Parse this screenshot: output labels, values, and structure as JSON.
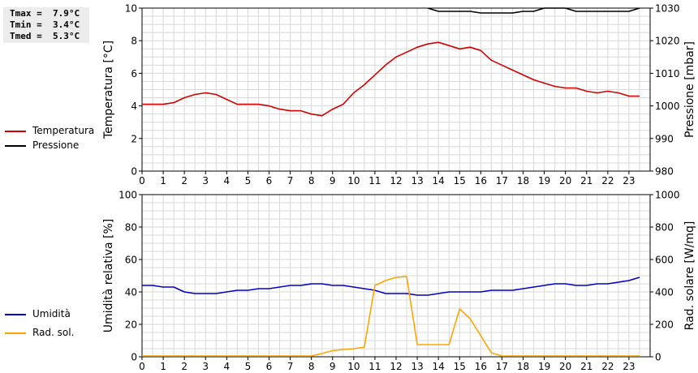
{
  "stats": {
    "tmax": "Tmax =  7.9°C",
    "tmin": "Tmin =  3.4°C",
    "tmed": "Tmed =  5.3°C"
  },
  "colors": {
    "temperatura": "#d40000",
    "pressione": "#000000",
    "umidita": "#0000cc",
    "radsol": "#ffa500",
    "grid": "#d8d8d8"
  },
  "legend_top": [
    {
      "label": "Temperatura",
      "color_key": "temperatura"
    },
    {
      "label": "Pressione",
      "color_key": "pressione"
    }
  ],
  "legend_bottom": [
    {
      "label": "Umidità",
      "color_key": "umidita"
    },
    {
      "label": "Rad. sol.",
      "color_key": "radsol"
    }
  ],
  "chart_data": [
    {
      "type": "line",
      "ylabel": "Temperatura [°C]",
      "y2label": "Pressione [mbar]",
      "xlim": [
        0,
        24
      ],
      "ylim": [
        0,
        10
      ],
      "y2lim": [
        980,
        1030
      ],
      "xticks": [
        "0",
        "1",
        "2",
        "3",
        "4",
        "5",
        "6",
        "7",
        "8",
        "9",
        "10",
        "11",
        "12",
        "13",
        "14",
        "15",
        "16",
        "17",
        "18",
        "19",
        "20",
        "21",
        "22",
        "23"
      ],
      "yticks": [
        "0",
        "2",
        "4",
        "6",
        "8",
        "10"
      ],
      "y2ticks": [
        "980",
        "990",
        "1000",
        "1010",
        "1020",
        "1030"
      ],
      "grid": true,
      "series": [
        {
          "name": "Temperatura",
          "axis": "left",
          "color_key": "temperatura",
          "x": [
            0,
            0.5,
            1,
            1.5,
            2,
            2.5,
            3,
            3.5,
            4,
            4.5,
            5,
            5.5,
            6,
            6.5,
            7,
            7.5,
            8,
            8.5,
            9,
            9.5,
            10,
            10.5,
            11,
            11.5,
            12,
            12.5,
            13,
            13.5,
            14,
            14.5,
            15,
            15.5,
            16,
            16.5,
            17,
            17.5,
            18,
            18.5,
            19,
            19.5,
            20,
            20.5,
            21,
            21.5,
            22,
            22.5,
            23,
            23.5
          ],
          "y": [
            4.1,
            4.1,
            4.1,
            4.2,
            4.5,
            4.7,
            4.8,
            4.7,
            4.4,
            4.1,
            4.1,
            4.1,
            4.0,
            3.8,
            3.7,
            3.7,
            3.5,
            3.4,
            3.8,
            4.1,
            4.8,
            5.3,
            5.9,
            6.5,
            7.0,
            7.3,
            7.6,
            7.8,
            7.9,
            7.7,
            7.5,
            7.6,
            7.4,
            6.8,
            6.5,
            6.2,
            5.9,
            5.6,
            5.4,
            5.2,
            5.1,
            5.1,
            4.9,
            4.8,
            4.9,
            4.8,
            4.6,
            4.6
          ]
        },
        {
          "name": "Pressione",
          "axis": "right",
          "color_key": "pressione",
          "x": [
            13.5,
            14,
            14.5,
            15,
            15.5,
            16,
            16.5,
            17,
            17.5,
            18,
            18.5,
            19,
            19.5,
            20,
            20.5,
            21,
            21.5,
            22,
            22.5,
            23,
            23.5
          ],
          "y": [
            1030,
            1029,
            1029,
            1029,
            1029,
            1028.5,
            1028.5,
            1028.5,
            1028.5,
            1029,
            1029,
            1030,
            1030,
            1030,
            1029,
            1029,
            1029,
            1029,
            1029,
            1029,
            1030
          ]
        }
      ]
    },
    {
      "type": "line",
      "ylabel": "Umidità relativa [%]",
      "y2label": "Rad. solare [W/mq]",
      "xlim": [
        0,
        24
      ],
      "ylim": [
        0,
        100
      ],
      "y2lim": [
        0,
        1000
      ],
      "xticks": [
        "0",
        "1",
        "2",
        "3",
        "4",
        "5",
        "6",
        "7",
        "8",
        "9",
        "10",
        "11",
        "12",
        "13",
        "14",
        "15",
        "16",
        "17",
        "18",
        "19",
        "20",
        "21",
        "22",
        "23"
      ],
      "yticks": [
        "0",
        "20",
        "40",
        "60",
        "80",
        "100"
      ],
      "y2ticks": [
        "0",
        "200",
        "400",
        "600",
        "800",
        "1000"
      ],
      "grid": true,
      "series": [
        {
          "name": "Umidità",
          "axis": "left",
          "color_key": "umidita",
          "x": [
            0,
            0.5,
            1,
            1.5,
            2,
            2.5,
            3,
            3.5,
            4,
            4.5,
            5,
            5.5,
            6,
            6.5,
            7,
            7.5,
            8,
            8.5,
            9,
            9.5,
            10,
            10.5,
            11,
            11.5,
            12,
            12.5,
            13,
            13.5,
            14,
            14.5,
            15,
            15.5,
            16,
            16.5,
            17,
            17.5,
            18,
            18.5,
            19,
            19.5,
            20,
            20.5,
            21,
            21.5,
            22,
            22.5,
            23,
            23.5
          ],
          "y": [
            44,
            44,
            43,
            43,
            40,
            39,
            39,
            39,
            40,
            41,
            41,
            42,
            42,
            43,
            44,
            44,
            45,
            45,
            44,
            44,
            43,
            42,
            41,
            39,
            39,
            39,
            38,
            38,
            39,
            40,
            40,
            40,
            40,
            41,
            41,
            41,
            42,
            43,
            44,
            45,
            45,
            44,
            44,
            45,
            45,
            46,
            47,
            49
          ]
        },
        {
          "name": "Rad. sol.",
          "axis": "right",
          "color_key": "radsol",
          "x": [
            0,
            0.5,
            1,
            1.5,
            2,
            2.5,
            3,
            3.5,
            4,
            4.5,
            5,
            5.5,
            6,
            6.5,
            7,
            7.5,
            8,
            8.5,
            9,
            9.5,
            10,
            10.5,
            11,
            11.5,
            12,
            12.5,
            13,
            13.5,
            14,
            14.5,
            15,
            15.5,
            16,
            16.5,
            17,
            17.5,
            18,
            18.5,
            19,
            19.5,
            20,
            20.5,
            21,
            21.5,
            22,
            22.5,
            23,
            23.5
          ],
          "y": [
            5,
            5,
            5,
            5,
            5,
            5,
            5,
            5,
            5,
            5,
            5,
            5,
            5,
            5,
            5,
            5,
            5,
            20,
            38,
            45,
            50,
            60,
            440,
            470,
            490,
            495,
            75,
            75,
            75,
            75,
            295,
            235,
            130,
            25,
            5,
            5,
            5,
            5,
            5,
            5,
            5,
            5,
            5,
            5,
            5,
            5,
            5,
            5
          ]
        }
      ]
    }
  ]
}
